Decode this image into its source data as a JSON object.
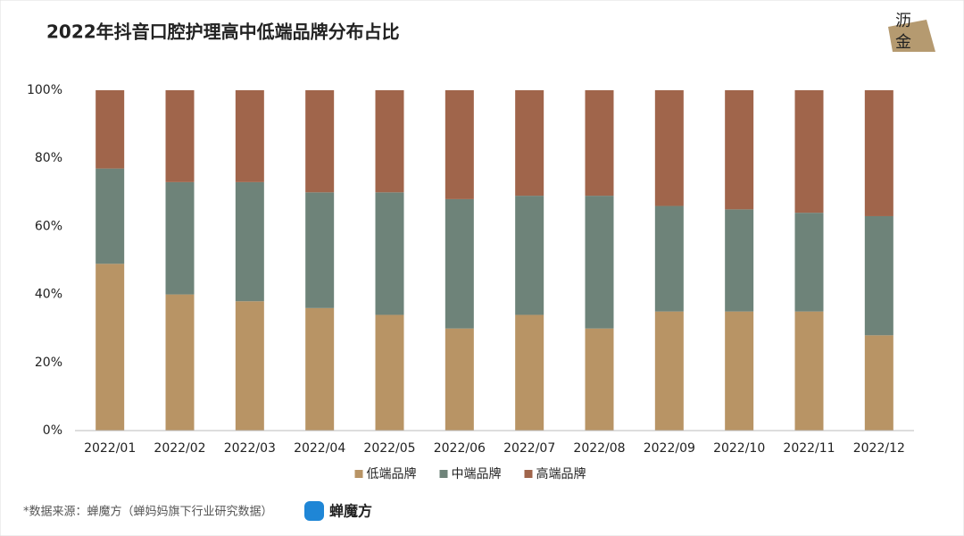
{
  "chart_data": {
    "type": "stacked_bar",
    "title": "2022年抖音口腔护理高中低端品牌分布占比",
    "categories": [
      "2022/01",
      "2022/02",
      "2022/03",
      "2022/04",
      "2022/05",
      "2022/06",
      "2022/07",
      "2022/08",
      "2022/09",
      "2022/10",
      "2022/11",
      "2022/12"
    ],
    "series": [
      {
        "name": "低端品牌",
        "color": "#b89465",
        "values": [
          49,
          40,
          38,
          36,
          34,
          30,
          34,
          30,
          35,
          35,
          35,
          28
        ]
      },
      {
        "name": "中端品牌",
        "color": "#6e8379",
        "values": [
          28,
          33,
          35,
          34,
          36,
          38,
          35,
          39,
          31,
          30,
          29,
          35
        ]
      },
      {
        "name": "高端品牌",
        "color": "#a0654b",
        "values": [
          23,
          27,
          27,
          30,
          30,
          32,
          31,
          31,
          34,
          35,
          36,
          37
        ]
      }
    ],
    "ylim": [
      0,
      100
    ],
    "yticks": [
      {
        "value": 0,
        "label": "0%"
      },
      {
        "value": 20,
        "label": "20%"
      },
      {
        "value": 40,
        "label": "40%"
      },
      {
        "value": 60,
        "label": "60%"
      },
      {
        "value": 80,
        "label": "80%"
      },
      {
        "value": 100,
        "label": "100%"
      }
    ],
    "grid": false,
    "legend": "bottom"
  },
  "footer": {
    "source": "*数据来源：蝉魔方（蝉妈妈旗下行业研究数据）",
    "logo": "蝉魔方"
  },
  "brand": {
    "line1": "沥",
    "line2": "金"
  }
}
